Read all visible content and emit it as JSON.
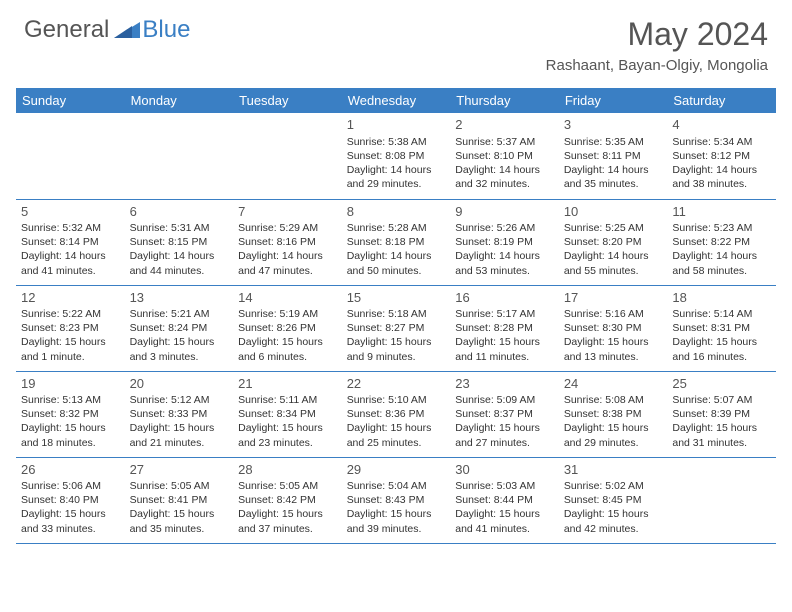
{
  "brand": {
    "part1": "General",
    "part2": "Blue"
  },
  "title": "May 2024",
  "location": "Rashaant, Bayan-Olgiy, Mongolia",
  "colors": {
    "header_bg": "#3a7fc4",
    "header_text": "#ffffff",
    "body_text": "#333333",
    "title_text": "#555555",
    "rule": "#3a7fc4",
    "background": "#ffffff"
  },
  "typography": {
    "title_fontsize": 32,
    "location_fontsize": 15,
    "dayheader_fontsize": 13,
    "cell_fontsize": 10.5,
    "daynum_fontsize": 13
  },
  "calendar": {
    "type": "table",
    "columns": [
      "Sunday",
      "Monday",
      "Tuesday",
      "Wednesday",
      "Thursday",
      "Friday",
      "Saturday"
    ],
    "weeks": [
      [
        null,
        null,
        null,
        {
          "n": "1",
          "sr": "5:38 AM",
          "ss": "8:08 PM",
          "dl": "14 hours and 29 minutes."
        },
        {
          "n": "2",
          "sr": "5:37 AM",
          "ss": "8:10 PM",
          "dl": "14 hours and 32 minutes."
        },
        {
          "n": "3",
          "sr": "5:35 AM",
          "ss": "8:11 PM",
          "dl": "14 hours and 35 minutes."
        },
        {
          "n": "4",
          "sr": "5:34 AM",
          "ss": "8:12 PM",
          "dl": "14 hours and 38 minutes."
        }
      ],
      [
        {
          "n": "5",
          "sr": "5:32 AM",
          "ss": "8:14 PM",
          "dl": "14 hours and 41 minutes."
        },
        {
          "n": "6",
          "sr": "5:31 AM",
          "ss": "8:15 PM",
          "dl": "14 hours and 44 minutes."
        },
        {
          "n": "7",
          "sr": "5:29 AM",
          "ss": "8:16 PM",
          "dl": "14 hours and 47 minutes."
        },
        {
          "n": "8",
          "sr": "5:28 AM",
          "ss": "8:18 PM",
          "dl": "14 hours and 50 minutes."
        },
        {
          "n": "9",
          "sr": "5:26 AM",
          "ss": "8:19 PM",
          "dl": "14 hours and 53 minutes."
        },
        {
          "n": "10",
          "sr": "5:25 AM",
          "ss": "8:20 PM",
          "dl": "14 hours and 55 minutes."
        },
        {
          "n": "11",
          "sr": "5:23 AM",
          "ss": "8:22 PM",
          "dl": "14 hours and 58 minutes."
        }
      ],
      [
        {
          "n": "12",
          "sr": "5:22 AM",
          "ss": "8:23 PM",
          "dl": "15 hours and 1 minute."
        },
        {
          "n": "13",
          "sr": "5:21 AM",
          "ss": "8:24 PM",
          "dl": "15 hours and 3 minutes."
        },
        {
          "n": "14",
          "sr": "5:19 AM",
          "ss": "8:26 PM",
          "dl": "15 hours and 6 minutes."
        },
        {
          "n": "15",
          "sr": "5:18 AM",
          "ss": "8:27 PM",
          "dl": "15 hours and 9 minutes."
        },
        {
          "n": "16",
          "sr": "5:17 AM",
          "ss": "8:28 PM",
          "dl": "15 hours and 11 minutes."
        },
        {
          "n": "17",
          "sr": "5:16 AM",
          "ss": "8:30 PM",
          "dl": "15 hours and 13 minutes."
        },
        {
          "n": "18",
          "sr": "5:14 AM",
          "ss": "8:31 PM",
          "dl": "15 hours and 16 minutes."
        }
      ],
      [
        {
          "n": "19",
          "sr": "5:13 AM",
          "ss": "8:32 PM",
          "dl": "15 hours and 18 minutes."
        },
        {
          "n": "20",
          "sr": "5:12 AM",
          "ss": "8:33 PM",
          "dl": "15 hours and 21 minutes."
        },
        {
          "n": "21",
          "sr": "5:11 AM",
          "ss": "8:34 PM",
          "dl": "15 hours and 23 minutes."
        },
        {
          "n": "22",
          "sr": "5:10 AM",
          "ss": "8:36 PM",
          "dl": "15 hours and 25 minutes."
        },
        {
          "n": "23",
          "sr": "5:09 AM",
          "ss": "8:37 PM",
          "dl": "15 hours and 27 minutes."
        },
        {
          "n": "24",
          "sr": "5:08 AM",
          "ss": "8:38 PM",
          "dl": "15 hours and 29 minutes."
        },
        {
          "n": "25",
          "sr": "5:07 AM",
          "ss": "8:39 PM",
          "dl": "15 hours and 31 minutes."
        }
      ],
      [
        {
          "n": "26",
          "sr": "5:06 AM",
          "ss": "8:40 PM",
          "dl": "15 hours and 33 minutes."
        },
        {
          "n": "27",
          "sr": "5:05 AM",
          "ss": "8:41 PM",
          "dl": "15 hours and 35 minutes."
        },
        {
          "n": "28",
          "sr": "5:05 AM",
          "ss": "8:42 PM",
          "dl": "15 hours and 37 minutes."
        },
        {
          "n": "29",
          "sr": "5:04 AM",
          "ss": "8:43 PM",
          "dl": "15 hours and 39 minutes."
        },
        {
          "n": "30",
          "sr": "5:03 AM",
          "ss": "8:44 PM",
          "dl": "15 hours and 41 minutes."
        },
        {
          "n": "31",
          "sr": "5:02 AM",
          "ss": "8:45 PM",
          "dl": "15 hours and 42 minutes."
        },
        null
      ]
    ],
    "labels": {
      "sunrise": "Sunrise:",
      "sunset": "Sunset:",
      "daylight": "Daylight:"
    }
  }
}
